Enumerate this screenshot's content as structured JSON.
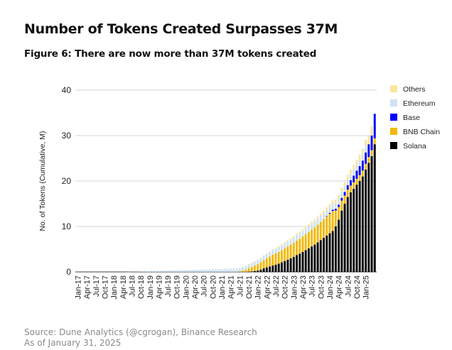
{
  "header": {
    "title": "Number of Tokens Created Surpasses 37M",
    "subtitle": "Figure 6: There are now more than 37M tokens created"
  },
  "footer": {
    "source": "Source: Dune Analytics (@cgrogan), Binance Research",
    "as_of": "As of January 31, 2025"
  },
  "chart_data": {
    "type": "bar",
    "stacked": true,
    "title": "Figure 6: There are now more than 37M tokens created",
    "xlabel": "",
    "ylabel": "No. of Tokens (Cumulative, M)",
    "ylim": [
      0,
      40
    ],
    "yticks": [
      0,
      10,
      20,
      30,
      40
    ],
    "grid": true,
    "legend_position": "right",
    "x_tick_labels": [
      "Jan-17",
      "Apr-17",
      "Jul-17",
      "Oct-17",
      "Jan-18",
      "Apr-18",
      "Jul-18",
      "Oct-18",
      "Jan-19",
      "Apr-19",
      "Jul-19",
      "Oct-19",
      "Jan-20",
      "Apr-20",
      "Jul-20",
      "Oct-20",
      "Jan-21",
      "Apr-21",
      "Jul-21",
      "Oct-21",
      "Jan-22",
      "Apr-22",
      "Jul-22",
      "Oct-22",
      "Jan-23",
      "Apr-23",
      "Jul-23",
      "Oct-23",
      "Jan-24",
      "Apr-24",
      "Jul-24",
      "Oct-24",
      "Jan-25"
    ],
    "x_start": "Jan-17",
    "x_end": "Jan-25",
    "frequency": "monthly",
    "legend_order": [
      "Others",
      "Ethereum",
      "Base",
      "BNB Chain",
      "Solana"
    ],
    "series": [
      {
        "name": "Solana",
        "color": "#000000",
        "values": [
          0,
          0,
          0,
          0,
          0,
          0,
          0,
          0,
          0,
          0,
          0,
          0,
          0,
          0,
          0,
          0,
          0,
          0,
          0,
          0,
          0,
          0,
          0,
          0,
          0,
          0,
          0,
          0,
          0,
          0,
          0,
          0,
          0,
          0,
          0,
          0,
          0,
          0,
          0,
          0,
          0,
          0,
          0,
          0,
          0,
          0,
          0,
          0,
          0,
          0,
          0,
          0,
          0,
          0,
          0,
          0,
          0,
          0.05,
          0.1,
          0.2,
          0.3,
          0.5,
          0.8,
          1.0,
          1.2,
          1.4,
          1.6,
          1.8,
          2.1,
          2.4,
          2.7,
          3.0,
          3.3,
          3.7,
          4.0,
          4.4,
          4.8,
          5.2,
          5.6,
          6.0,
          6.5,
          7.0,
          7.5,
          8.0,
          8.5,
          9.0,
          10.0,
          11.5,
          13.5,
          15.0,
          16.5,
          17.5,
          18.3,
          19.2,
          20.0,
          21.0,
          22.5,
          24.0,
          25.5,
          28.1
        ]
      },
      {
        "name": "BNB Chain",
        "color": "#F0B90B",
        "values": [
          0,
          0,
          0,
          0,
          0,
          0,
          0,
          0,
          0,
          0,
          0,
          0,
          0,
          0,
          0,
          0,
          0,
          0,
          0,
          0,
          0,
          0,
          0,
          0,
          0,
          0,
          0,
          0,
          0,
          0,
          0,
          0,
          0,
          0,
          0,
          0,
          0,
          0,
          0,
          0,
          0,
          0,
          0,
          0,
          0,
          0,
          0,
          0,
          0,
          0,
          0,
          0,
          0,
          0,
          0.1,
          0.3,
          0.5,
          0.8,
          1.0,
          1.2,
          1.4,
          1.6,
          1.8,
          2.0,
          2.2,
          2.4,
          2.5,
          2.6,
          2.7,
          2.8,
          2.9,
          3.0,
          3.1,
          3.2,
          3.3,
          3.4,
          3.5,
          3.6,
          3.7,
          3.8,
          3.9,
          4.0,
          4.1,
          4.2,
          4.3,
          4.4,
          3.5,
          2.8,
          2.2,
          1.8,
          1.6,
          1.5,
          1.4,
          1.3,
          1.3,
          1.3,
          1.3,
          1.3,
          1.3,
          1.3
        ]
      },
      {
        "name": "Base",
        "color": "#0000FF",
        "values": [
          0,
          0,
          0,
          0,
          0,
          0,
          0,
          0,
          0,
          0,
          0,
          0,
          0,
          0,
          0,
          0,
          0,
          0,
          0,
          0,
          0,
          0,
          0,
          0,
          0,
          0,
          0,
          0,
          0,
          0,
          0,
          0,
          0,
          0,
          0,
          0,
          0,
          0,
          0,
          0,
          0,
          0,
          0,
          0,
          0,
          0,
          0,
          0,
          0,
          0,
          0,
          0,
          0,
          0,
          0,
          0,
          0,
          0,
          0,
          0,
          0,
          0,
          0,
          0,
          0,
          0,
          0,
          0,
          0,
          0,
          0,
          0,
          0,
          0,
          0,
          0,
          0,
          0,
          0,
          0,
          0,
          0,
          0,
          0.1,
          0.2,
          0.3,
          0.4,
          0.5,
          0.6,
          0.8,
          1.0,
          1.2,
          1.5,
          1.8,
          2.0,
          2.2,
          2.5,
          2.8,
          3.2,
          5.4
        ]
      },
      {
        "name": "Ethereum",
        "color": "#CFE2F3",
        "values": [
          0,
          0,
          0,
          0,
          0,
          0,
          0,
          0,
          0,
          0,
          0,
          0,
          0,
          0,
          0,
          0,
          0.02,
          0.04,
          0.06,
          0.08,
          0.1,
          0.12,
          0.14,
          0.16,
          0.18,
          0.2,
          0.22,
          0.24,
          0.26,
          0.28,
          0.3,
          0.32,
          0.34,
          0.36,
          0.38,
          0.4,
          0.42,
          0.44,
          0.46,
          0.48,
          0.5,
          0.52,
          0.54,
          0.56,
          0.58,
          0.6,
          0.62,
          0.64,
          0.66,
          0.68,
          0.7,
          0.72,
          0.74,
          0.76,
          0.78,
          0.8,
          0.82,
          0.84,
          0.86,
          0.88,
          0.9,
          0.92,
          0.94,
          0.96,
          0.98,
          1.0,
          1.0,
          1.05,
          1.05,
          1.1,
          1.1,
          1.15,
          1.15,
          1.2,
          1.2,
          1.2,
          1.25,
          1.25,
          1.25,
          1.3,
          1.3,
          1.3,
          1.3,
          1.3,
          1.3,
          1.3,
          1.3,
          1.3,
          1.3,
          1.3,
          1.3,
          1.3,
          1.3,
          1.3,
          1.3,
          1.3,
          1.3
        ]
      },
      {
        "name": "Others",
        "color": "#FCE5A0",
        "values": [
          0,
          0,
          0,
          0,
          0,
          0,
          0,
          0,
          0,
          0,
          0,
          0,
          0,
          0,
          0,
          0,
          0,
          0,
          0,
          0,
          0,
          0,
          0,
          0,
          0,
          0,
          0,
          0,
          0,
          0,
          0,
          0,
          0,
          0,
          0,
          0,
          0,
          0,
          0,
          0,
          0,
          0,
          0,
          0,
          0,
          0,
          0,
          0,
          0,
          0,
          0,
          0,
          0,
          0,
          0,
          0,
          0,
          0.02,
          0.04,
          0.06,
          0.08,
          0.1,
          0.12,
          0.14,
          0.16,
          0.18,
          0.2,
          0.22,
          0.24,
          0.26,
          0.28,
          0.3,
          0.32,
          0.34,
          0.36,
          0.38,
          0.4,
          0.42,
          0.44,
          0.46,
          0.5,
          0.54,
          0.58,
          0.62,
          0.66,
          0.7,
          0.75,
          0.8,
          0.85,
          0.9,
          0.95,
          1.0,
          1.05,
          1.1,
          1.2,
          1.3,
          1.5,
          1.8,
          2.1
        ]
      }
    ]
  }
}
